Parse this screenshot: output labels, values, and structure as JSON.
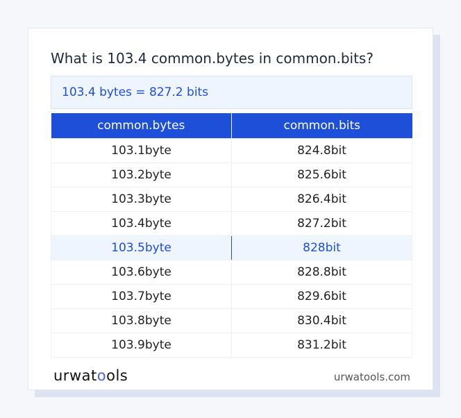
{
  "title": "What is 103.4 common.bytes in common.bits?",
  "result": "103.4 bytes = 827.2 bits",
  "table": {
    "headers": [
      "common.bytes",
      "common.bits"
    ],
    "rows": [
      [
        "103.1byte",
        "824.8bit"
      ],
      [
        "103.2byte",
        "825.6bit"
      ],
      [
        "103.3byte",
        "826.4bit"
      ],
      [
        "103.4byte",
        "827.2bit"
      ],
      [
        "103.5byte",
        "828bit"
      ],
      [
        "103.6byte",
        "828.8bit"
      ],
      [
        "103.7byte",
        "829.6bit"
      ],
      [
        "103.8byte",
        "830.4bit"
      ],
      [
        "103.9byte",
        "831.2bit"
      ]
    ],
    "highlighted_row": 4
  },
  "footer": {
    "logo": "urwatools",
    "logo_parts": [
      "urwat",
      "o",
      "ols"
    ],
    "site": "urwatools.com"
  },
  "colors": {
    "accent": "#1d4fd8",
    "highlight_bg": "#eef5ff"
  }
}
